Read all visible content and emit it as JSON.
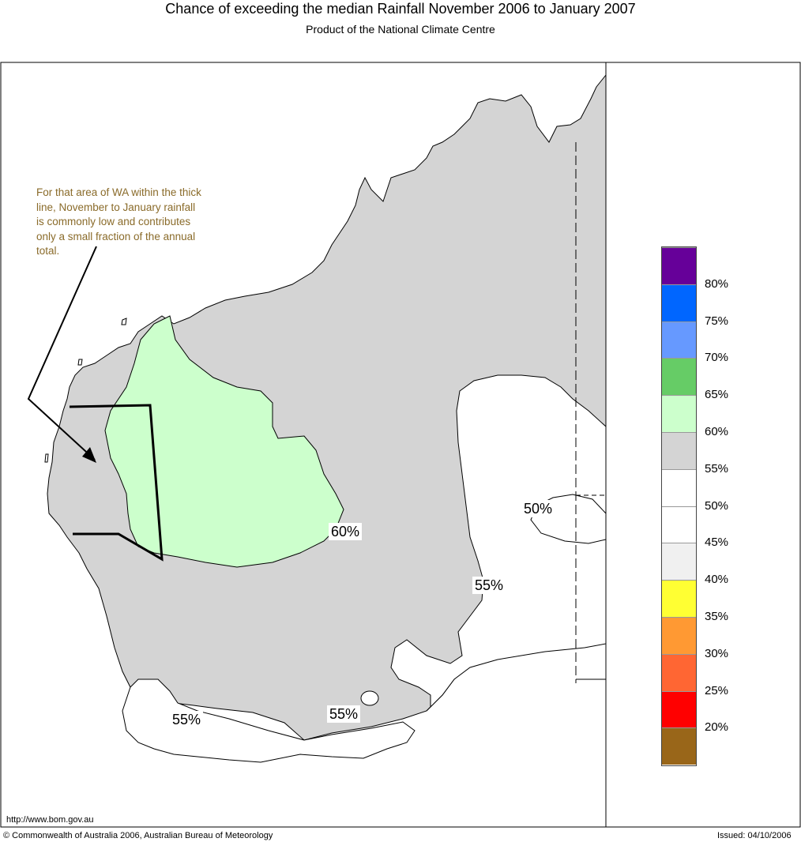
{
  "header": {
    "title": "Chance of exceeding the median Rainfall November 2006 to January 2007",
    "subtitle": "Product of the National Climate Centre"
  },
  "annotation": {
    "lines": [
      "For that area of WA within the thick",
      "line, November to January rainfall",
      "is commonly low and contributes",
      "only a small fraction of the annual",
      "total."
    ]
  },
  "map_labels": {
    "label_60": "60%",
    "label_55_center": "55%",
    "label_50": "50%",
    "label_55_south_west": "55%",
    "label_55_south": "55%"
  },
  "legend": {
    "colors": [
      "#660099",
      "#0066ff",
      "#6699ff",
      "#66cc66",
      "#ccffcc",
      "#d4d4d4",
      "#ffffff",
      "#ffffff",
      "#f0f0f0",
      "#ffff33",
      "#ff9933",
      "#ff6633",
      "#ff0000",
      "#996619"
    ],
    "labels": [
      "80%",
      "75%",
      "70%",
      "65%",
      "60%",
      "55%",
      "50%",
      "45%",
      "40%",
      "35%",
      "30%",
      "25%",
      "20%"
    ]
  },
  "footer": {
    "url": "http://www.bom.gov.au",
    "copyright": "© Commonwealth of Australia 2006, Australian Bureau of Meteorology",
    "issued": "Issued: 04/10/2006"
  },
  "colors": {
    "grey_zone": "#d4d4d4",
    "green_zone": "#ccffcc",
    "white_zone": "#ffffff",
    "annotation_text": "#8a6b2a"
  }
}
